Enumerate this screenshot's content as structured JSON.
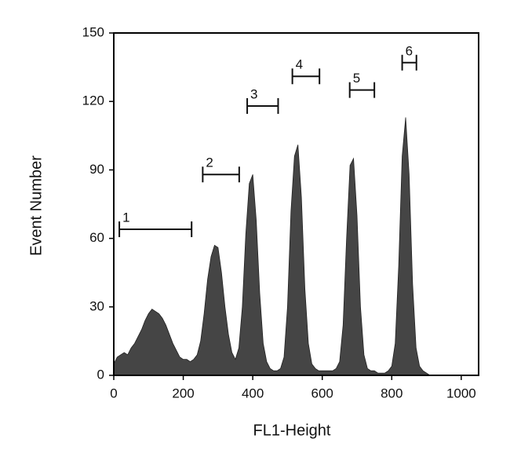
{
  "chart_data": {
    "type": "area",
    "xlabel": "FL1-Height",
    "ylabel": "Event Number",
    "color": "#454545",
    "x": [
      0,
      10,
      20,
      30,
      40,
      50,
      60,
      70,
      80,
      90,
      100,
      110,
      120,
      130,
      140,
      150,
      160,
      170,
      180,
      190,
      200,
      210,
      220,
      230,
      240,
      250,
      260,
      270,
      280,
      290,
      300,
      310,
      320,
      330,
      340,
      350,
      360,
      370,
      380,
      390,
      400,
      410,
      420,
      430,
      440,
      450,
      460,
      470,
      480,
      490,
      500,
      510,
      520,
      530,
      540,
      550,
      560,
      570,
      580,
      590,
      600,
      610,
      620,
      630,
      640,
      650,
      660,
      670,
      680,
      690,
      700,
      710,
      720,
      730,
      740,
      750,
      760,
      770,
      780,
      790,
      800,
      810,
      820,
      830,
      840,
      850,
      860,
      870,
      880,
      890,
      900,
      910,
      920,
      930,
      940,
      950
    ],
    "values": [
      5,
      8,
      9,
      10,
      9,
      12,
      14,
      17,
      20,
      24,
      27,
      29,
      28,
      27,
      25,
      22,
      18,
      14,
      11,
      8,
      7,
      7,
      6,
      7,
      9,
      15,
      27,
      42,
      52,
      57,
      56,
      45,
      30,
      18,
      10,
      7,
      12,
      30,
      62,
      84,
      88,
      68,
      36,
      14,
      6,
      3,
      2,
      2,
      3,
      8,
      30,
      72,
      96,
      101,
      78,
      38,
      14,
      5,
      3,
      2,
      2,
      2,
      2,
      2,
      3,
      6,
      22,
      60,
      92,
      95,
      70,
      30,
      9,
      3,
      2,
      2,
      1,
      1,
      1,
      2,
      4,
      14,
      48,
      96,
      113,
      88,
      40,
      12,
      4,
      2,
      1,
      0,
      0,
      0,
      0,
      0
    ],
    "gates": [
      {
        "label": "1",
        "range": [
          16,
          224
        ],
        "y": 64
      },
      {
        "label": "2",
        "range": [
          256,
          361
        ],
        "y": 88
      },
      {
        "label": "3",
        "range": [
          384,
          473
        ],
        "y": 118
      },
      {
        "label": "4",
        "range": [
          514,
          592
        ],
        "y": 131
      },
      {
        "label": "5",
        "range": [
          679,
          750
        ],
        "y": 125
      },
      {
        "label": "6",
        "range": [
          830,
          871
        ],
        "y": 137
      }
    ],
    "xlim": [
      0,
      1050
    ],
    "ylim": [
      0,
      150
    ],
    "xticks": [
      0,
      200,
      400,
      600,
      800,
      1000
    ],
    "yticks": [
      0,
      30,
      60,
      90,
      120,
      150
    ]
  }
}
